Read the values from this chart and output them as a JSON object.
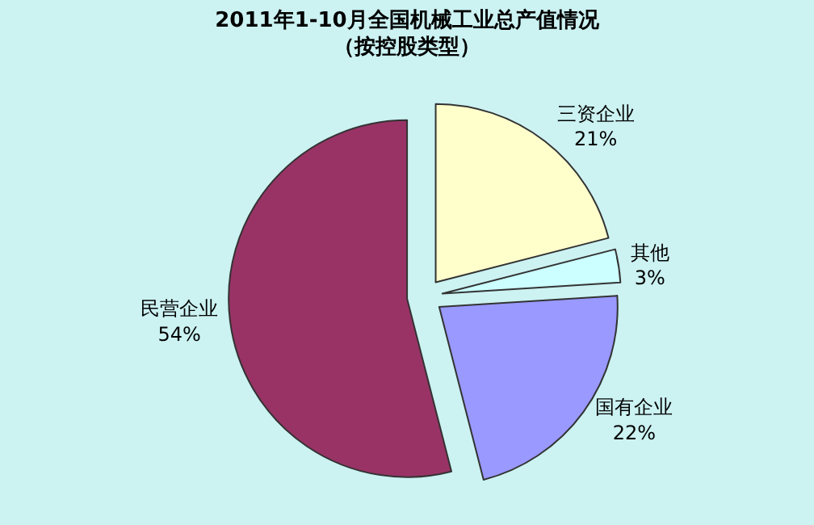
{
  "chart_data": {
    "type": "pie",
    "title": "2011年1-10月全国机械工业总产值情况",
    "subtitle": "（按控股类型）",
    "categories": [
      "三资企业",
      "其他",
      "国有企业",
      "民营企业"
    ],
    "values": [
      21,
      3,
      22,
      54
    ],
    "value_labels": [
      "21%",
      "3%",
      "22%",
      "54%"
    ],
    "colors": [
      "#ffffcc",
      "#ccffff",
      "#9999ff",
      "#993366"
    ],
    "legend": false
  }
}
